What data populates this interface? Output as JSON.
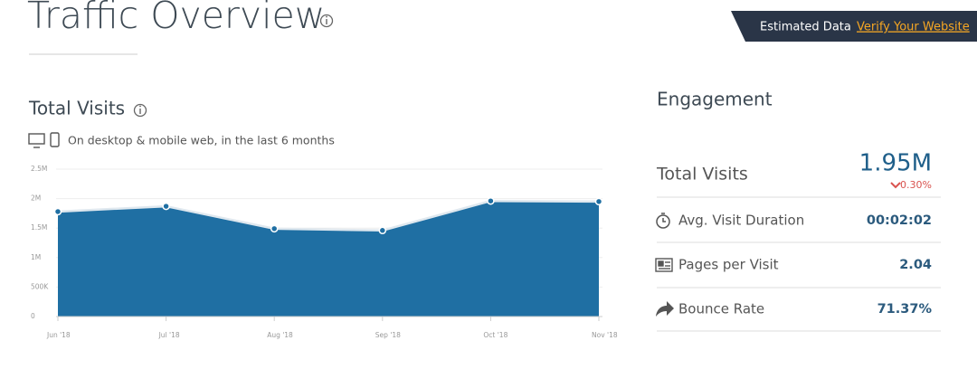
{
  "header": {
    "title": "Traffic Overview",
    "badge": "Estimated Data",
    "link": "Verify Your Website"
  },
  "visits_panel": {
    "title": "Total Visits",
    "subtitle": "On desktop & mobile web, in the last 6 months"
  },
  "chart_data": {
    "type": "area",
    "categories": [
      "Jun '18",
      "Jul '18",
      "Aug '18",
      "Sep '18",
      "Oct '18",
      "Nov '18"
    ],
    "values": [
      1780000,
      1870000,
      1490000,
      1460000,
      1960000,
      1950000
    ],
    "color": "#1f6fa3",
    "ylim": [
      0,
      2500000
    ],
    "yticks": [
      0,
      {
        "value": 500000,
        "label": "500K"
      },
      {
        "value": 1000000,
        "label": "1M"
      },
      {
        "value": 1500000,
        "label": "1.5M"
      },
      {
        "value": 2000000,
        "label": "2M"
      },
      {
        "value": 2500000,
        "label": "2.5M"
      }
    ],
    "grid": true
  },
  "engagement": {
    "title": "Engagement",
    "total_visits": {
      "label": "Total Visits",
      "value": "1.95M",
      "change": "0.30%"
    },
    "rows": [
      {
        "label": "Avg. Visit Duration",
        "value": "00:02:02"
      },
      {
        "label": "Pages per Visit",
        "value": "2.04"
      },
      {
        "label": "Bounce Rate",
        "value": "71.37%"
      }
    ]
  }
}
